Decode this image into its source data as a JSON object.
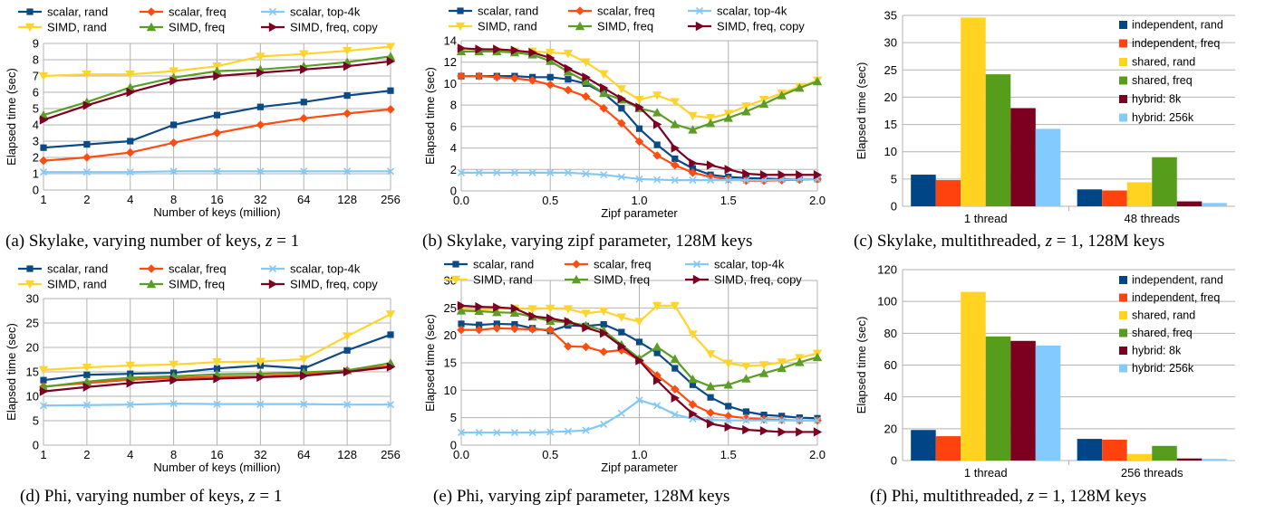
{
  "colors": {
    "scalar_rand": "#0b4a85",
    "scalar_freq": "#ff4d12",
    "scalar_top4k": "#84c8f5",
    "simd_rand": "#ffd42e",
    "simd_freq": "#5b9d27",
    "simd_freq_copy": "#7b0024",
    "independent_rand": "#004586",
    "independent_freq": "#ff420e",
    "shared_rand": "#ffd320",
    "shared_freq": "#579d1c",
    "hybrid_8k": "#7e0021",
    "hybrid_256k": "#83caff",
    "grid": "#b3b3b3"
  },
  "captions": {
    "a": {
      "pre": "(a) Skylake, varying number of keys, ",
      "math": "z",
      "post": " = 1"
    },
    "b": {
      "pre": "(b) Skylake, varying zipf parameter, 128M keys",
      "math": "",
      "post": ""
    },
    "c": {
      "pre": "(c) Skylake, multithreaded, ",
      "math": "z",
      "post": " = 1, 128M keys"
    },
    "d": {
      "pre": "(d) Phi, varying number of keys, ",
      "math": "z",
      "post": " = 1"
    },
    "e": {
      "pre": "(e) Phi, varying zipf parameter, 128M keys",
      "math": "",
      "post": ""
    },
    "f": {
      "pre": "(f) Phi, multithreaded, ",
      "math": "z",
      "post": " = 1, 128M keys"
    }
  },
  "chart_data": [
    {
      "id": "a",
      "type": "line",
      "xlabel": "Number of keys (million)",
      "ylabel": "Elapsed time (sec)",
      "categories": [
        "1",
        "2",
        "4",
        "8",
        "16",
        "32",
        "64",
        "128",
        "256"
      ],
      "ylim": [
        0,
        9
      ],
      "yticks": [
        0,
        1,
        2,
        3,
        4,
        5,
        6,
        7,
        8,
        9
      ],
      "grid": true,
      "legend": "top",
      "series": [
        {
          "name": "scalar, rand",
          "color_key": "scalar_rand",
          "marker": "square",
          "values": [
            2.6,
            2.8,
            3.0,
            4.0,
            4.6,
            5.1,
            5.4,
            5.8,
            6.1
          ]
        },
        {
          "name": "scalar, freq",
          "color_key": "scalar_freq",
          "marker": "diamond",
          "values": [
            1.8,
            2.0,
            2.3,
            2.9,
            3.5,
            4.0,
            4.4,
            4.7,
            4.95
          ]
        },
        {
          "name": "scalar, top-4k",
          "color_key": "scalar_top4k",
          "marker": "x",
          "values": [
            1.1,
            1.1,
            1.1,
            1.15,
            1.15,
            1.15,
            1.15,
            1.15,
            1.15
          ]
        },
        {
          "name": "SIMD, rand",
          "color_key": "simd_rand",
          "marker": "tri-down",
          "values": [
            7.0,
            7.1,
            7.1,
            7.3,
            7.6,
            8.2,
            8.35,
            8.55,
            8.8
          ]
        },
        {
          "name": "SIMD, freq",
          "color_key": "simd_freq",
          "marker": "tri-up",
          "values": [
            4.6,
            5.4,
            6.3,
            6.9,
            7.3,
            7.4,
            7.6,
            7.85,
            8.2
          ]
        },
        {
          "name": "SIMD, freq, copy",
          "color_key": "simd_freq_copy",
          "marker": "tri-right",
          "values": [
            4.3,
            5.2,
            6.0,
            6.7,
            7.0,
            7.2,
            7.4,
            7.6,
            7.9
          ]
        }
      ]
    },
    {
      "id": "b",
      "type": "line",
      "xlabel": "Zipf parameter",
      "ylabel": "Elapsed time (sec)",
      "x": [
        0.0,
        0.1,
        0.2,
        0.3,
        0.4,
        0.5,
        0.6,
        0.7,
        0.8,
        0.9,
        1.0,
        1.1,
        1.2,
        1.3,
        1.4,
        1.5,
        1.6,
        1.7,
        1.8,
        1.9,
        2.0
      ],
      "xlim": [
        0,
        2
      ],
      "xticks": [
        "0.0",
        "0.5",
        "1.0",
        "1.5",
        "2.0"
      ],
      "ylim": [
        0,
        14
      ],
      "yticks": [
        0,
        2,
        4,
        6,
        8,
        10,
        12,
        14
      ],
      "grid": true,
      "legend": "top",
      "series": [
        {
          "name": "scalar, rand",
          "color_key": "scalar_rand",
          "marker": "square",
          "values": [
            10.7,
            10.7,
            10.7,
            10.7,
            10.6,
            10.6,
            10.4,
            10.0,
            9.1,
            7.7,
            5.8,
            4.3,
            3.0,
            2.1,
            1.5,
            1.3,
            1.2,
            1.15,
            1.1,
            1.1,
            1.1
          ]
        },
        {
          "name": "scalar, freq",
          "color_key": "scalar_freq",
          "marker": "diamond",
          "values": [
            10.7,
            10.7,
            10.6,
            10.5,
            10.3,
            9.9,
            9.4,
            8.8,
            7.7,
            6.3,
            4.6,
            3.3,
            2.4,
            1.7,
            1.3,
            1.1,
            0.95,
            0.95,
            1.0,
            1.05,
            1.1
          ]
        },
        {
          "name": "scalar, top-4k",
          "color_key": "scalar_top4k",
          "marker": "x",
          "values": [
            1.7,
            1.7,
            1.7,
            1.7,
            1.7,
            1.7,
            1.7,
            1.6,
            1.5,
            1.3,
            1.1,
            1.05,
            1.0,
            1.0,
            1.0,
            1.0,
            1.0,
            1.0,
            1.05,
            1.1,
            1.1
          ]
        },
        {
          "name": "SIMD, rand",
          "color_key": "simd_rand",
          "marker": "tri-down",
          "values": [
            13.0,
            13.0,
            13.0,
            13.0,
            13.0,
            12.9,
            12.8,
            12.0,
            10.9,
            9.5,
            8.5,
            8.9,
            8.3,
            7.0,
            6.8,
            7.2,
            7.9,
            8.5,
            9.1,
            9.7,
            10.3
          ]
        },
        {
          "name": "SIMD, freq",
          "color_key": "simd_freq",
          "marker": "tri-up",
          "values": [
            13.0,
            13.0,
            13.0,
            12.9,
            12.7,
            12.1,
            11.1,
            10.2,
            9.1,
            8.5,
            7.7,
            7.3,
            6.2,
            5.7,
            6.3,
            6.8,
            7.4,
            8.1,
            8.9,
            9.6,
            10.2
          ]
        },
        {
          "name": "SIMD, freq, copy",
          "color_key": "simd_freq_copy",
          "marker": "tri-right",
          "values": [
            13.3,
            13.2,
            13.2,
            13.1,
            12.9,
            12.4,
            11.4,
            10.6,
            9.6,
            8.6,
            7.8,
            6.2,
            4.0,
            2.6,
            2.4,
            2.0,
            1.6,
            1.5,
            1.5,
            1.5,
            1.5
          ]
        }
      ]
    },
    {
      "id": "c",
      "type": "bar",
      "ylabel": "Elapsed time (sec)",
      "categories": [
        "1 thread",
        "48 threads"
      ],
      "ylim": [
        0,
        35
      ],
      "yticks": [
        0,
        5,
        10,
        15,
        20,
        25,
        30,
        35
      ],
      "grid": true,
      "legend": "top-right",
      "series": [
        {
          "name": "independent, rand",
          "color_key": "independent_rand",
          "values": [
            5.8,
            3.1
          ]
        },
        {
          "name": "independent, freq",
          "color_key": "independent_freq",
          "values": [
            4.8,
            2.9
          ]
        },
        {
          "name": "shared, rand",
          "color_key": "shared_rand",
          "values": [
            34.6,
            4.4
          ]
        },
        {
          "name": "shared, freq",
          "color_key": "shared_freq",
          "values": [
            24.2,
            9.0
          ]
        },
        {
          "name": "hybrid: 8k",
          "color_key": "hybrid_8k",
          "values": [
            18.0,
            0.9
          ]
        },
        {
          "name": "hybrid: 256k",
          "color_key": "hybrid_256k",
          "values": [
            14.2,
            0.6
          ]
        }
      ]
    },
    {
      "id": "d",
      "type": "line",
      "xlabel": "Number of keys (million)",
      "ylabel": "Elapsed time (sec)",
      "categories": [
        "1",
        "2",
        "4",
        "8",
        "16",
        "32",
        "64",
        "128",
        "256"
      ],
      "ylim": [
        0,
        30
      ],
      "yticks": [
        0,
        5,
        10,
        15,
        20,
        25,
        30
      ],
      "grid": true,
      "legend": "top",
      "series": [
        {
          "name": "scalar, rand",
          "color_key": "scalar_rand",
          "marker": "square",
          "values": [
            13.3,
            14.4,
            14.6,
            14.8,
            15.7,
            16.3,
            15.7,
            19.4,
            22.6
          ]
        },
        {
          "name": "scalar, freq",
          "color_key": "scalar_freq",
          "marker": "diamond",
          "values": [
            12.0,
            12.7,
            13.4,
            13.7,
            14.0,
            14.1,
            14.5,
            15.3,
            16.2
          ]
        },
        {
          "name": "scalar, top-4k",
          "color_key": "scalar_top4k",
          "marker": "x",
          "values": [
            8.1,
            8.2,
            8.3,
            8.5,
            8.4,
            8.4,
            8.4,
            8.3,
            8.3
          ]
        },
        {
          "name": "SIMD, rand",
          "color_key": "simd_rand",
          "marker": "tri-down",
          "values": [
            15.4,
            15.9,
            16.3,
            16.5,
            17.0,
            17.1,
            17.6,
            22.3,
            26.8
          ]
        },
        {
          "name": "SIMD, freq",
          "color_key": "simd_freq",
          "marker": "tri-up",
          "values": [
            11.9,
            13.0,
            13.8,
            14.1,
            14.5,
            14.6,
            14.9,
            15.3,
            16.8
          ]
        },
        {
          "name": "SIMD, freq, copy",
          "color_key": "simd_freq_copy",
          "marker": "tri-right",
          "values": [
            11.0,
            11.9,
            12.7,
            13.3,
            13.6,
            13.9,
            14.2,
            15.0,
            16.0
          ]
        }
      ]
    },
    {
      "id": "e",
      "type": "line",
      "xlabel": "Zipf parameter",
      "ylabel": "Elapsed time (sec)",
      "x": [
        0.0,
        0.1,
        0.2,
        0.3,
        0.4,
        0.5,
        0.6,
        0.7,
        0.8,
        0.9,
        1.0,
        1.1,
        1.2,
        1.3,
        1.4,
        1.5,
        1.6,
        1.7,
        1.8,
        1.9,
        2.0
      ],
      "xlim": [
        0,
        2
      ],
      "xticks": [
        "0.0",
        "0.5",
        "1.0",
        "1.5",
        "2.0"
      ],
      "ylim": [
        0,
        30
      ],
      "yticks": [
        0,
        5,
        10,
        15,
        20,
        25,
        30
      ],
      "grid": true,
      "legend": "top",
      "series": [
        {
          "name": "scalar, rand",
          "color_key": "scalar_rand",
          "marker": "square",
          "values": [
            22.1,
            21.9,
            22.1,
            22.0,
            21.3,
            20.8,
            21.8,
            21.7,
            22.0,
            20.6,
            18.8,
            16.8,
            14.0,
            11.0,
            8.7,
            7.1,
            6.1,
            5.5,
            5.3,
            5.0,
            4.9
          ]
        },
        {
          "name": "scalar, freq",
          "color_key": "scalar_freq",
          "marker": "diamond",
          "values": [
            21.0,
            21.0,
            21.3,
            21.2,
            21.1,
            21.0,
            18.0,
            17.9,
            17.0,
            17.3,
            15.5,
            12.7,
            10.2,
            7.4,
            5.9,
            5.3,
            4.9,
            4.7,
            4.6,
            4.5,
            4.5
          ]
        },
        {
          "name": "scalar, top-4k",
          "color_key": "scalar_top4k",
          "marker": "x",
          "values": [
            2.3,
            2.3,
            2.3,
            2.3,
            2.3,
            2.4,
            2.5,
            2.7,
            3.8,
            5.8,
            8.2,
            7.2,
            5.6,
            4.8,
            4.6,
            4.5,
            4.5,
            4.5,
            4.5,
            4.5,
            4.5
          ]
        },
        {
          "name": "SIMD, rand",
          "color_key": "simd_rand",
          "marker": "tri-down",
          "values": [
            24.8,
            24.7,
            24.8,
            24.9,
            24.8,
            24.9,
            24.8,
            24.0,
            24.4,
            23.3,
            22.5,
            25.4,
            25.4,
            20.2,
            16.6,
            14.9,
            14.4,
            14.6,
            15.1,
            15.9,
            16.7
          ]
        },
        {
          "name": "SIMD, freq",
          "color_key": "simd_freq",
          "marker": "tri-up",
          "values": [
            24.5,
            24.4,
            24.2,
            24.1,
            23.4,
            22.6,
            22.4,
            21.8,
            20.9,
            18.3,
            15.8,
            17.9,
            15.7,
            12.0,
            10.7,
            11.0,
            12.1,
            13.1,
            14.0,
            15.1,
            16.0
          ]
        },
        {
          "name": "SIMD, freq, copy",
          "color_key": "simd_freq_copy",
          "marker": "tri-right",
          "values": [
            25.4,
            25.2,
            25.1,
            24.9,
            23.5,
            23.1,
            22.5,
            21.4,
            20.4,
            18.0,
            15.4,
            11.8,
            8.6,
            5.7,
            3.9,
            3.3,
            2.8,
            2.6,
            2.4,
            2.4,
            2.4
          ]
        }
      ]
    },
    {
      "id": "f",
      "type": "bar",
      "ylabel": "Elapsed time (sec)",
      "categories": [
        "1 thread",
        "256 threads"
      ],
      "ylim": [
        0,
        120
      ],
      "yticks": [
        0,
        20,
        40,
        60,
        80,
        100,
        120
      ],
      "grid": true,
      "legend": "top-right",
      "series": [
        {
          "name": "independent, rand",
          "color_key": "independent_rand",
          "values": [
            19.2,
            13.6
          ]
        },
        {
          "name": "independent, freq",
          "color_key": "independent_freq",
          "values": [
            15.3,
            13.1
          ]
        },
        {
          "name": "shared, rand",
          "color_key": "shared_rand",
          "values": [
            106.0,
            4.1
          ]
        },
        {
          "name": "shared, freq",
          "color_key": "shared_freq",
          "values": [
            78.0,
            9.2
          ]
        },
        {
          "name": "hybrid: 8k",
          "color_key": "hybrid_8k",
          "values": [
            75.2,
            1.3
          ]
        },
        {
          "name": "hybrid: 256k",
          "color_key": "hybrid_256k",
          "values": [
            72.3,
            1.0
          ]
        }
      ]
    }
  ]
}
